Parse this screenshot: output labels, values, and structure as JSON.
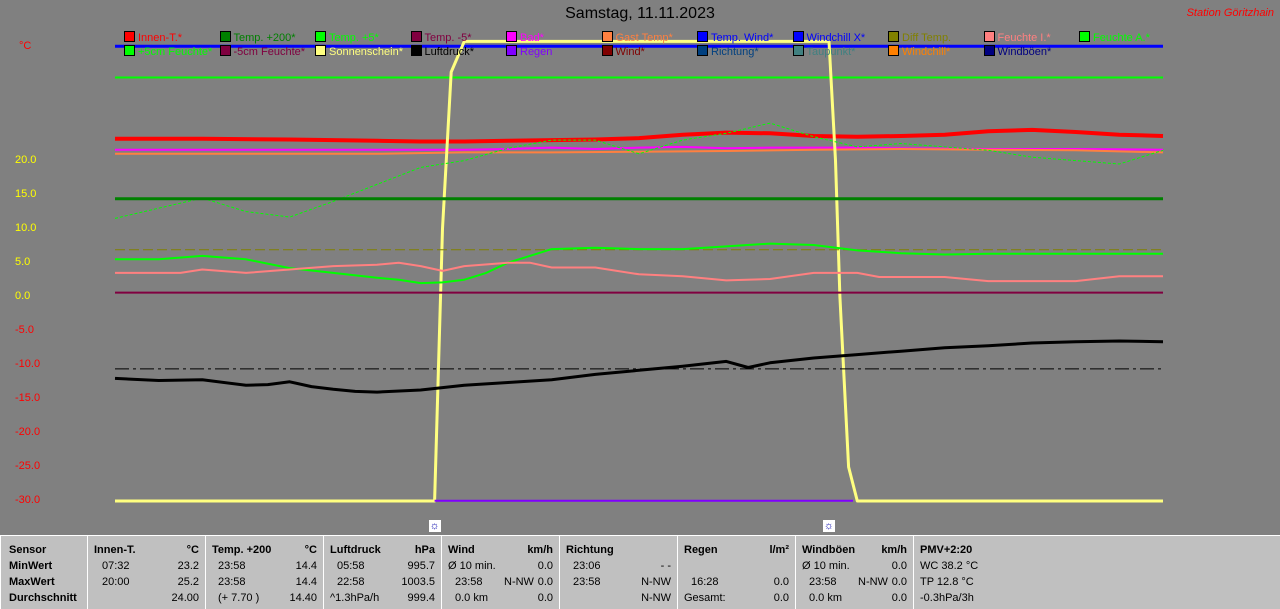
{
  "header": {
    "title": "Samstag, 11.11.2023",
    "station": "Station Göritzhain",
    "unit": "°C"
  },
  "legend": [
    {
      "label": "Innen-T.*",
      "color": "#ff0000"
    },
    {
      "label": "Temp. +200*",
      "color": "#008000"
    },
    {
      "label": "Temp. +5*",
      "color": "#00ff00"
    },
    {
      "label": "Temp. -5*",
      "color": "#800040"
    },
    {
      "label": "Bad*",
      "color": "#ff00ff"
    },
    {
      "label": "Gast Temp*",
      "color": "#ff8040"
    },
    {
      "label": "Temp. Wind*",
      "color": "#0000ff"
    },
    {
      "label": "Windchill X*",
      "color": "#0000ff"
    },
    {
      "label": "Diff Temp.",
      "color": "#808000"
    },
    {
      "label": "Feuchte I.*",
      "color": "#ff8080"
    },
    {
      "label": "Feuchte A.*",
      "color": "#00ff00"
    },
    {
      "label": "+5cm Feuchte*",
      "color": "#00ff00"
    },
    {
      "label": "-5cm Feuchte*",
      "color": "#800040"
    },
    {
      "label": "Sonnenschein*",
      "color": "#ffff80"
    },
    {
      "label": "Luftdruck*",
      "color": "#000000"
    },
    {
      "label": "Regen",
      "color": "#8000ff"
    },
    {
      "label": "Wind*",
      "color": "#800000"
    },
    {
      "label": "Richtung*",
      "color": "#004080"
    },
    {
      "label": "Taupunkt*",
      "color": "#408080"
    },
    {
      "label": "Windchill*",
      "color": "#ff8000"
    },
    {
      "label": "Windböen*",
      "color": "#000080"
    }
  ],
  "sun_icon": "sun-moon-icon",
  "chart_data": {
    "type": "line",
    "ylim": [
      -30,
      38
    ],
    "xlim": [
      0,
      24
    ],
    "y_ticks": [
      "20.0",
      "15.0",
      "10.0",
      "5.0",
      "0.0",
      "-5.0",
      "-10.0",
      "-15.0",
      "-20.0",
      "-25.0",
      "-30.0"
    ],
    "y_tick_values": [
      20,
      15,
      10,
      5,
      0,
      -5,
      -10,
      -15,
      -20,
      -25,
      -30
    ],
    "grid": false,
    "legend_position": "top",
    "sun_markers_hours": [
      7.32,
      16.35
    ],
    "series": [
      {
        "name": "Windböen*",
        "color": "#0000ff",
        "width": 3,
        "x": [
          0,
          24
        ],
        "y": [
          36.8,
          36.8
        ]
      },
      {
        "name": "Feuchte A.*",
        "color": "#00ff00",
        "width": 2,
        "x": [
          0,
          24
        ],
        "y": [
          32.2,
          32.2
        ]
      },
      {
        "name": "Innen-T.*",
        "color": "#ff0000",
        "width": 4,
        "x": [
          0,
          2,
          4,
          5,
          6,
          7,
          8,
          9,
          10,
          11,
          12,
          13,
          14,
          15,
          16,
          17,
          18,
          19,
          20,
          21,
          22,
          23,
          24
        ],
        "y": [
          23.2,
          23.2,
          23.1,
          23.0,
          22.9,
          22.8,
          22.8,
          22.9,
          23.0,
          23.1,
          23.3,
          23.8,
          24.1,
          24.0,
          23.6,
          23.5,
          23.6,
          23.8,
          24.3,
          24.5,
          24.2,
          23.8,
          23.6
        ]
      },
      {
        "name": "Bad*",
        "color": "#ff00ff",
        "width": 2,
        "x": [
          0,
          4,
          8,
          9,
          10,
          11,
          12,
          13,
          14,
          15,
          16,
          17,
          18,
          20,
          22,
          24
        ],
        "y": [
          21.6,
          21.6,
          21.6,
          21.7,
          21.9,
          21.7,
          21.9,
          22.0,
          21.8,
          21.9,
          21.9,
          21.9,
          21.8,
          21.7,
          21.7,
          21.6
        ]
      },
      {
        "name": "Gast Temp*",
        "color": "#ff8040",
        "width": 2,
        "x": [
          0,
          6,
          8,
          10,
          12,
          14,
          16,
          18,
          20,
          22,
          24
        ],
        "y": [
          21.0,
          21.0,
          21.2,
          21.2,
          21.3,
          21.4,
          21.6,
          21.7,
          21.6,
          21.5,
          21.2
        ]
      },
      {
        "name": "Sonnenschein*",
        "color": "#ffff80",
        "width": 3,
        "x": [
          0,
          7.32,
          7.5,
          7.7,
          8,
          16.35,
          16.5,
          16.6,
          16.8,
          17,
          24
        ],
        "y": [
          -30,
          -30,
          10,
          33,
          37.5,
          37.5,
          20,
          0,
          -25,
          -30,
          -30
        ]
      },
      {
        "name": "+5cm Feuchte*",
        "color": "#00ff00",
        "width": 1,
        "dash": "3,2",
        "x": [
          0,
          1,
          2,
          3,
          4,
          5,
          6,
          7,
          8,
          9,
          10,
          11,
          12,
          13,
          14,
          15,
          16,
          17,
          18,
          19,
          20,
          21,
          22,
          23,
          24
        ],
        "y": [
          11.5,
          13.0,
          14.5,
          12.5,
          11.7,
          14.0,
          16.5,
          19.0,
          20.0,
          21.8,
          23.0,
          23.0,
          21.0,
          23.0,
          24.0,
          25.5,
          23.5,
          22.0,
          22.5,
          22.0,
          21.5,
          20.5,
          20.0,
          19.5,
          21.5
        ]
      },
      {
        "name": "Temp. +200*",
        "color": "#008000",
        "width": 3,
        "x": [
          0,
          24
        ],
        "y": [
          14.4,
          14.4
        ]
      },
      {
        "name": "Diff Temp.",
        "color": "#808000",
        "width": 1,
        "dash": "10,4",
        "x": [
          0,
          24
        ],
        "y": [
          6.9,
          6.9
        ]
      },
      {
        "name": "Temp. +5*",
        "color": "#00ff00",
        "width": 2,
        "x": [
          0,
          1,
          2,
          3,
          4,
          5,
          6,
          6.5,
          7,
          7.5,
          8,
          8.5,
          9,
          9.5,
          10,
          11,
          12,
          13,
          14,
          15,
          16,
          17,
          18,
          19,
          20,
          22,
          24
        ],
        "y": [
          5.5,
          5.5,
          6.0,
          5.5,
          4.2,
          3.5,
          2.8,
          2.5,
          2.0,
          2.1,
          2.5,
          3.5,
          5.0,
          6.0,
          7.0,
          7.2,
          7.0,
          7.0,
          7.4,
          7.8,
          7.6,
          6.8,
          6.4,
          6.2,
          6.3,
          6.3,
          6.3
        ]
      },
      {
        "name": "Feuchte I.*",
        "color": "#ff8080",
        "width": 2,
        "x": [
          0,
          1.5,
          2,
          3,
          4,
          5,
          6,
          6.5,
          7,
          7.5,
          8,
          9,
          9.5,
          10,
          11,
          12,
          13,
          14,
          15,
          16,
          16.5,
          17,
          17.5,
          18,
          18.5,
          19,
          20,
          21,
          22,
          23,
          24
        ],
        "y": [
          3.5,
          3.5,
          4.0,
          3.5,
          4.0,
          4.5,
          4.7,
          5.0,
          4.5,
          3.8,
          4.5,
          5.0,
          5.0,
          4.3,
          4.3,
          3.3,
          3.0,
          2.4,
          2.6,
          3.5,
          3.5,
          3.5,
          2.9,
          2.9,
          2.9,
          2.9,
          2.3,
          2.3,
          2.3,
          3.0,
          3.0
        ]
      },
      {
        "name": "Temp. -5*",
        "color": "#800040",
        "width": 2,
        "x": [
          0,
          24
        ],
        "y": [
          0.6,
          0.6
        ]
      },
      {
        "name": "Windchill X*",
        "color": "#000000",
        "width": 1,
        "dash": "14,4,3,4",
        "x": [
          0,
          24
        ],
        "y": [
          -10.6,
          -10.6
        ]
      },
      {
        "name": "Luftdruck*",
        "color": "#000000",
        "width": 3,
        "x": [
          0,
          1,
          2,
          3,
          3.5,
          4,
          4.5,
          5,
          5.5,
          6,
          7,
          8,
          9,
          10,
          11,
          12,
          13,
          14,
          14.5,
          15,
          16,
          17,
          18,
          19,
          20,
          21,
          22,
          23,
          24
        ],
        "y": [
          -12.0,
          -12.3,
          -12.2,
          -13.0,
          -12.9,
          -12.5,
          -13.2,
          -13.6,
          -13.9,
          -14.0,
          -13.7,
          -13.0,
          -12.6,
          -12.2,
          -11.4,
          -10.8,
          -10.2,
          -9.5,
          -10.4,
          -9.7,
          -9.0,
          -8.5,
          -8.0,
          -7.5,
          -7.2,
          -6.8,
          -6.6,
          -6.5,
          -6.6
        ]
      },
      {
        "name": "Regen",
        "color": "#8000ff",
        "width": 2,
        "x": [
          7.32,
          16.9
        ],
        "y": [
          -29.95,
          -29.95
        ]
      }
    ]
  },
  "stats": {
    "row_labels": [
      "Sensor",
      "MinWert",
      "MaxWert",
      "Durchschnitt"
    ],
    "innen": {
      "title": "Innen-T.",
      "unit": "°C",
      "min_time": "07:32",
      "min": "23.2",
      "max_time": "20:00",
      "max": "25.2",
      "avg": "24.00"
    },
    "temp200": {
      "title": "Temp. +200",
      "unit": "°C",
      "min_time": "23:58",
      "min": "14.4",
      "max_time": "23:58",
      "max": "14.4",
      "avg_extra": "(+ 7.70 )",
      "avg": "14.40"
    },
    "druck": {
      "title": "Luftdruck",
      "unit": "hPa",
      "min_time": "05:58",
      "min": "995.7",
      "max_time": "22:58",
      "max": "1003.5",
      "avg_extra": "^1.3hPa/h",
      "avg": "999.4"
    },
    "wind": {
      "title": "Wind",
      "unit": "km/h",
      "r1_label": "Ø 10 min.",
      "r1": "0.0",
      "r2_time": "23:58",
      "r2_dir": "N-NW",
      "r2": "0.0",
      "r3_label": "0.0 km",
      "r3": "0.0"
    },
    "richtung": {
      "title": "Richtung",
      "r1_time": "23:06",
      "r1": "- -",
      "r2_time": "23:58",
      "r2": "N-NW",
      "r3": "N-NW"
    },
    "regen": {
      "title": "Regen",
      "unit": "l/m²",
      "r2_time": "16:28",
      "r2": "0.0",
      "r3_label": "Gesamt:",
      "r3": "0.0"
    },
    "boeen": {
      "title": "Windböen",
      "unit": "km/h",
      "r1_label": "Ø 10 min.",
      "r1": "0.0",
      "r2_time": "23:58",
      "r2_dir": "N-NW",
      "r2": "0.0",
      "r3_label": "0.0 km",
      "r3": "0.0"
    },
    "pmv": {
      "title": "PMV+2:20",
      "r1": "WC 38.2 °C",
      "r2": "TP 12.8 °C",
      "r3": "-0.3hPa/3h"
    }
  }
}
